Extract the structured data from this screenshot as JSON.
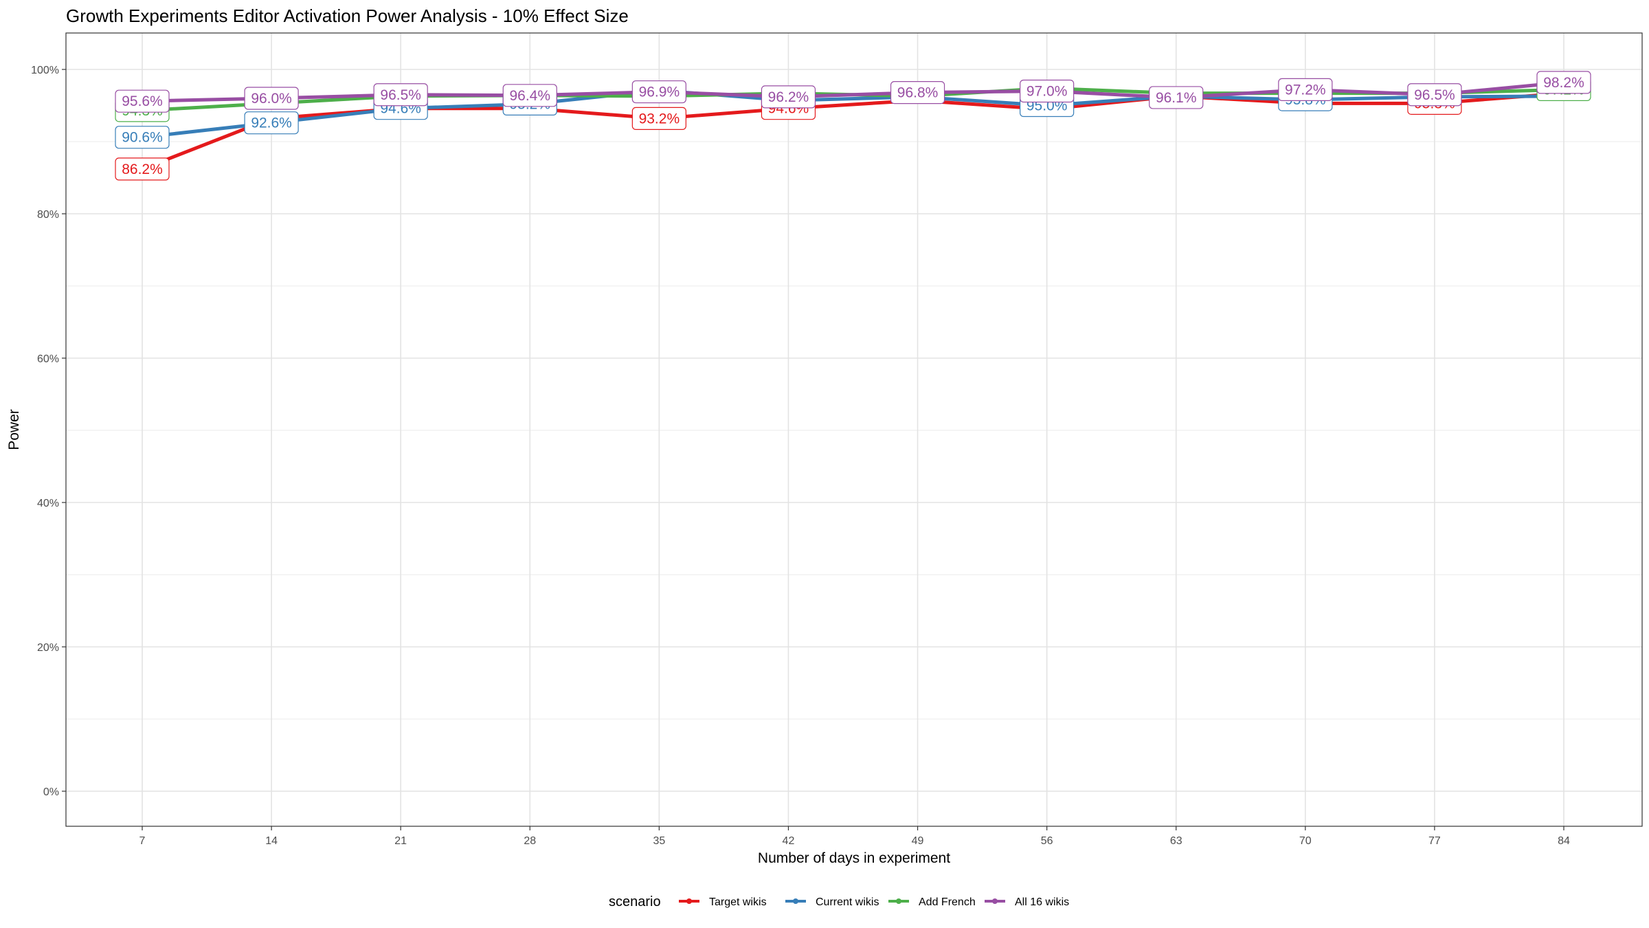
{
  "chart_data": {
    "type": "line",
    "title": "Growth Experiments Editor Activation Power Analysis - 10% Effect Size",
    "xlabel": "Number of days in experiment",
    "ylabel": "Power",
    "x": [
      7,
      14,
      21,
      28,
      35,
      42,
      49,
      56,
      63,
      70,
      77,
      84
    ],
    "x_tick_labels": [
      "7",
      "14",
      "21",
      "28",
      "35",
      "42",
      "49",
      "56",
      "63",
      "70",
      "77",
      "84"
    ],
    "ylim": [
      0,
      1
    ],
    "y_ticks": [
      0,
      0.2,
      0.4,
      0.6,
      0.8,
      1.0
    ],
    "y_tick_labels": [
      "0%",
      "20%",
      "40%",
      "60%",
      "80%",
      "100%"
    ],
    "grid": true,
    "legend": {
      "title": "scenario",
      "position": "bottom"
    },
    "series": [
      {
        "name": "Target wikis",
        "color": "#e41a1c",
        "values": [
          0.862,
          0.932,
          0.946,
          0.946,
          0.932,
          0.946,
          0.957,
          0.945,
          0.963,
          0.953,
          0.953,
          0.967
        ],
        "labels": [
          "86.2%",
          "",
          "",
          "",
          "93.2%",
          "94.6%",
          "",
          "",
          "",
          "",
          "95.3%",
          ""
        ]
      },
      {
        "name": "Current wikis",
        "color": "#377eb8",
        "values": [
          0.906,
          0.926,
          0.946,
          0.952,
          0.971,
          0.957,
          0.962,
          0.95,
          0.963,
          0.958,
          0.962,
          0.963
        ],
        "labels": [
          "90.6%",
          "92.6%",
          "94.6%",
          "95.2%",
          "",
          "",
          "",
          "95.0%",
          "",
          "95.8%",
          "",
          ""
        ]
      },
      {
        "name": "Add French",
        "color": "#4daf4a",
        "values": [
          0.943,
          0.953,
          0.963,
          0.964,
          0.963,
          0.967,
          0.963,
          0.974,
          0.967,
          0.967,
          0.967,
          0.972
        ],
        "labels": [
          "94.3%",
          "",
          "",
          "",
          "",
          "",
          "",
          "",
          "",
          "",
          "",
          "97.2%"
        ]
      },
      {
        "name": "All 16 wikis",
        "color": "#984ea3",
        "values": [
          0.956,
          0.96,
          0.965,
          0.964,
          0.969,
          0.962,
          0.968,
          0.97,
          0.961,
          0.972,
          0.965,
          0.982
        ],
        "labels": [
          "95.6%",
          "96.0%",
          "96.5%",
          "96.4%",
          "96.9%",
          "96.2%",
          "96.8%",
          "97.0%",
          "96.1%",
          "97.2%",
          "96.5%",
          "98.2%"
        ]
      }
    ]
  }
}
